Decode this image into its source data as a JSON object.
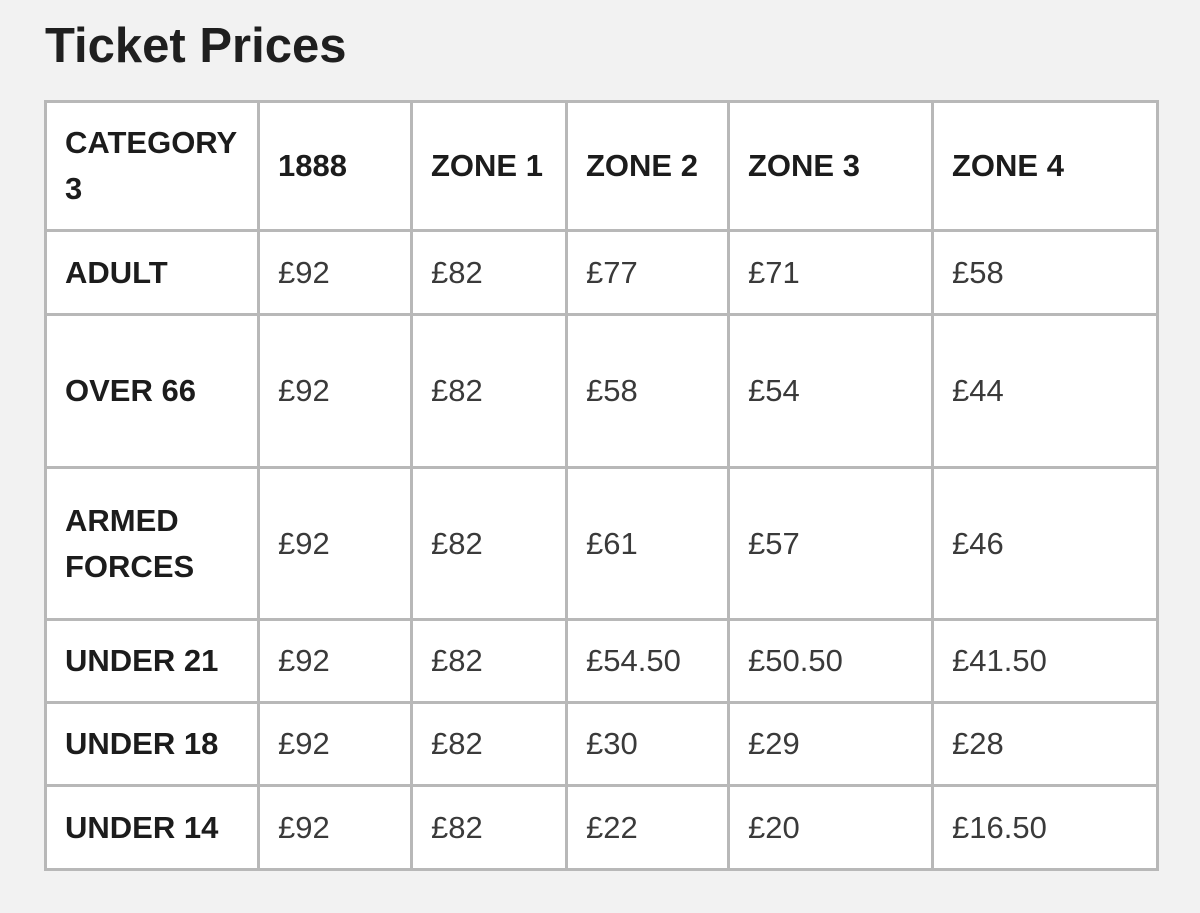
{
  "title": "Ticket Prices",
  "table": {
    "headers": [
      "CATEGORY 3",
      "1888",
      "ZONE 1",
      "ZONE 2",
      "ZONE 3",
      "ZONE 4"
    ],
    "rows": [
      {
        "label": "ADULT",
        "prices": [
          "£92",
          "£82",
          "£77",
          "£71",
          "£58"
        ]
      },
      {
        "label": "OVER 66",
        "prices": [
          "£92",
          "£82",
          "£58",
          "£54",
          "£44"
        ]
      },
      {
        "label": "ARMED FORCES",
        "prices": [
          "£92",
          "£82",
          "£61",
          "£57",
          "£46"
        ]
      },
      {
        "label": "UNDER 21",
        "prices": [
          "£92",
          "£82",
          "£54.50",
          "£50.50",
          "£41.50"
        ]
      },
      {
        "label": "UNDER 18",
        "prices": [
          "£92",
          "£82",
          "£30",
          "£29",
          "£28"
        ]
      },
      {
        "label": "UNDER 14",
        "prices": [
          "£92",
          "£82",
          "£22",
          "£20",
          "£16.50"
        ]
      }
    ]
  },
  "colors": {
    "background": "#f2f2f2",
    "table_background": "#ffffff",
    "border": "#b8b8b8",
    "text": "#1c1c1c"
  }
}
